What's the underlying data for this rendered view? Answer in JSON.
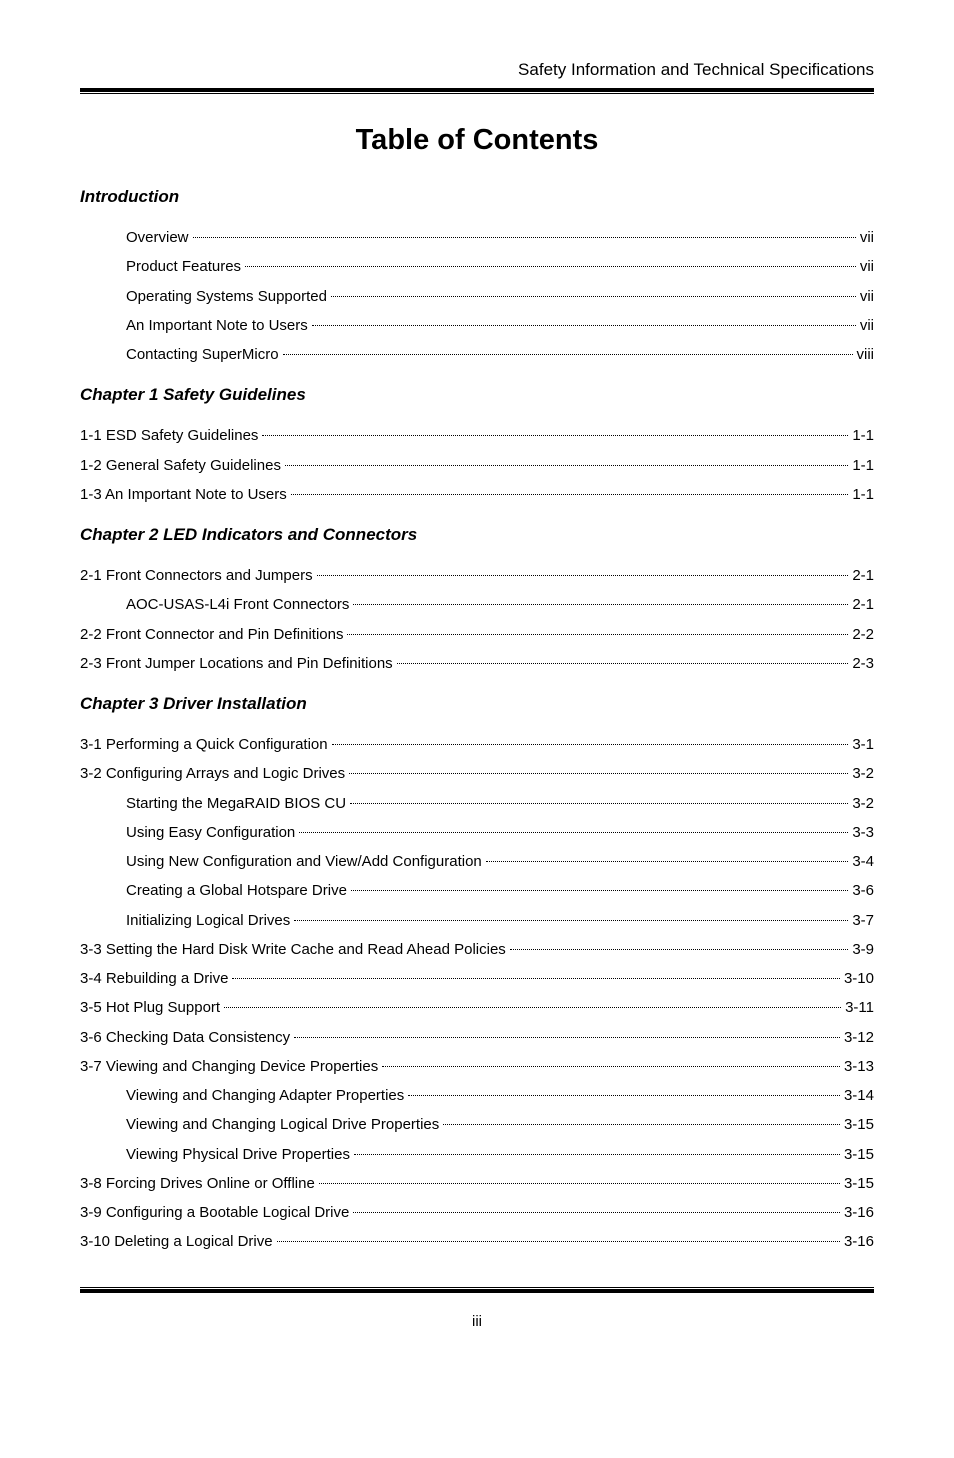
{
  "header": {
    "text": "Safety Information and Technical Specifications"
  },
  "title": "Table of Contents",
  "sections": [
    {
      "heading": "Introduction",
      "entries": [
        {
          "label": "Overview",
          "page": "vii",
          "level": 1
        },
        {
          "label": "Product Features",
          "page": "vii",
          "level": 1
        },
        {
          "label": "Operating Systems Supported",
          "page": "vii",
          "level": 1
        },
        {
          "label": "An Important Note to Users",
          "page": "vii",
          "level": 1
        },
        {
          "label": "Contacting SuperMicro",
          "page": "viii",
          "level": 1
        }
      ]
    },
    {
      "heading": "Chapter 1 Safety Guidelines",
      "entries": [
        {
          "label": "1-1 ESD Safety Guidelines",
          "page": "1-1",
          "level": 0
        },
        {
          "label": "1-2 General Safety Guidelines",
          "page": "1-1",
          "level": 0
        },
        {
          "label": "1-3 An Important Note to Users",
          "page": "1-1",
          "level": 0
        }
      ]
    },
    {
      "heading": "Chapter 2 LED Indicators and Connectors",
      "entries": [
        {
          "label": "2-1 Front Connectors and Jumpers",
          "page": "2-1",
          "level": 0
        },
        {
          "label": "AOC-USAS-L4i Front Connectors",
          "page": "2-1",
          "level": 1
        },
        {
          "label": "2-2 Front Connector and Pin Definitions",
          "page": "2-2",
          "level": 0
        },
        {
          "label": "2-3 Front Jumper Locations and Pin Definitions",
          "page": "2-3",
          "level": 0
        }
      ]
    },
    {
      "heading": "Chapter 3 Driver Installation",
      "entries": [
        {
          "label": "3-1 Performing a Quick Configuration",
          "page": "3-1",
          "level": 0
        },
        {
          "label": "3-2 Configuring Arrays and Logic Drives ",
          "page": "3-2",
          "level": 0
        },
        {
          "label": "Starting the MegaRAID BIOS CU",
          "page": "3-2",
          "level": 1
        },
        {
          "label": "Using Easy Configuration",
          "page": "3-3",
          "level": 1
        },
        {
          "label": "Using New Configuration and View/Add Configuration",
          "page": "3-4",
          "level": 1
        },
        {
          "label": "Creating a Global Hotspare Drive",
          "page": "3-6",
          "level": 1
        },
        {
          "label": "Initializing Logical Drives",
          "page": "3-7",
          "level": 1
        },
        {
          "label": "3-3 Setting the Hard Disk Write Cache and Read Ahead Policies",
          "page": "3-9",
          "level": 0
        },
        {
          "label": "3-4 Rebuilding a Drive",
          "page": "3-10",
          "level": 0
        },
        {
          "label": "3-5 Hot Plug Support",
          "page": "3-11",
          "level": 0
        },
        {
          "label": "3-6 Checking Data Consistency",
          "page": "3-12",
          "level": 0
        },
        {
          "label": "3-7 Viewing and Changing Device Properties",
          "page": "3-13",
          "level": 0
        },
        {
          "label": "Viewing and Changing Adapter Properties",
          "page": "3-14",
          "level": 1
        },
        {
          "label": "Viewing and Changing Logical Drive Properties",
          "page": "3-15",
          "level": 1
        },
        {
          "label": "Viewing Physical Drive Properties",
          "page": "3-15",
          "level": 1
        },
        {
          "label": "3-8 Forcing Drives Online or Offline",
          "page": "3-15",
          "level": 0
        },
        {
          "label": "3-9 Configuring a Bootable Logical Drive",
          "page": "3-16",
          "level": 0
        },
        {
          "label": "3-10 Deleting a Logical Drive",
          "page": "3-16",
          "level": 0
        }
      ]
    }
  ],
  "footer": {
    "pageNumber": "iii"
  }
}
